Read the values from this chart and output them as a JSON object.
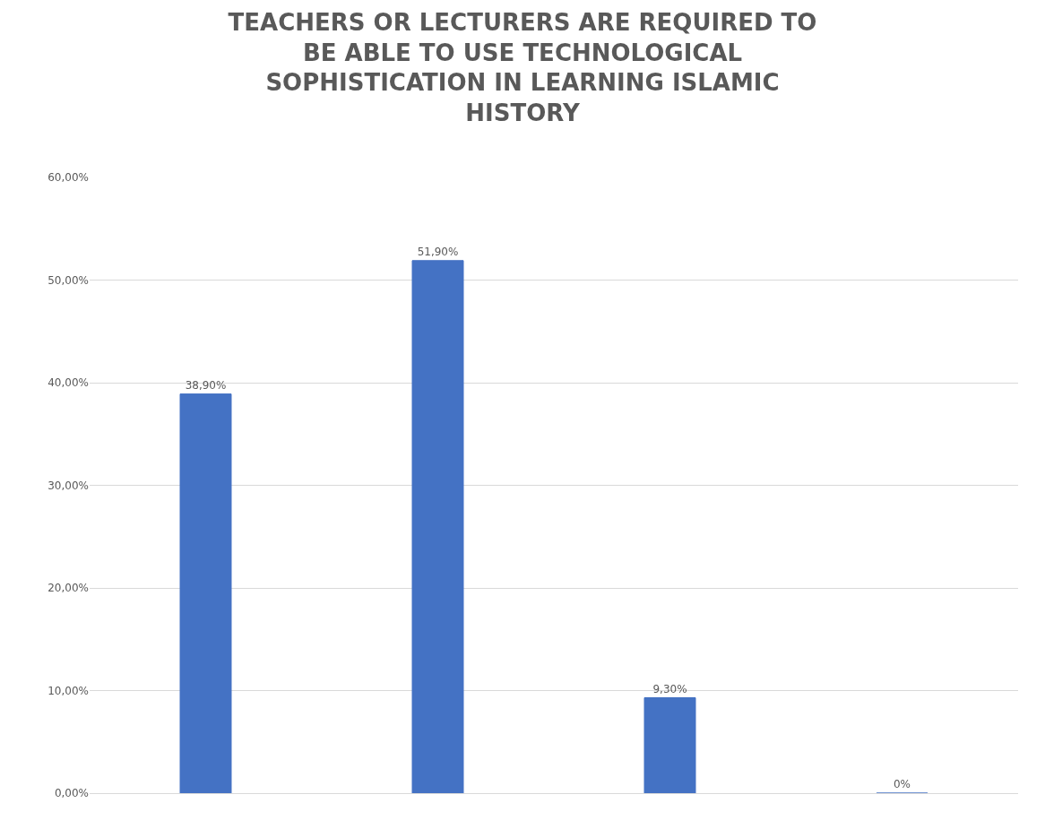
{
  "chart_data": {
    "type": "bar",
    "title": "TEACHERS OR LECTURERS ARE REQUIRED TO\nBE ABLE TO USE TECHNOLOGICAL\nSOPHISTICATION IN LEARNING ISLAMIC\nHISTORY",
    "categories": [
      null,
      null,
      null,
      null
    ],
    "values": [
      38.9,
      51.9,
      9.3,
      0
    ],
    "value_labels": [
      "38,90%",
      "51,90%",
      "9,30%",
      "0%"
    ],
    "color": "#4472c4",
    "ylim": [
      0,
      60
    ],
    "yticks": [
      {
        "value": 0,
        "label": "0,00%"
      },
      {
        "value": 10,
        "label": "10,00%"
      },
      {
        "value": 20,
        "label": "20,00%"
      },
      {
        "value": 30,
        "label": "30,00%"
      },
      {
        "value": 40,
        "label": "40,00%"
      },
      {
        "value": 50,
        "label": "50,00%"
      },
      {
        "value": 60,
        "label": "60,00%"
      }
    ],
    "grid": "y",
    "legend": false
  }
}
